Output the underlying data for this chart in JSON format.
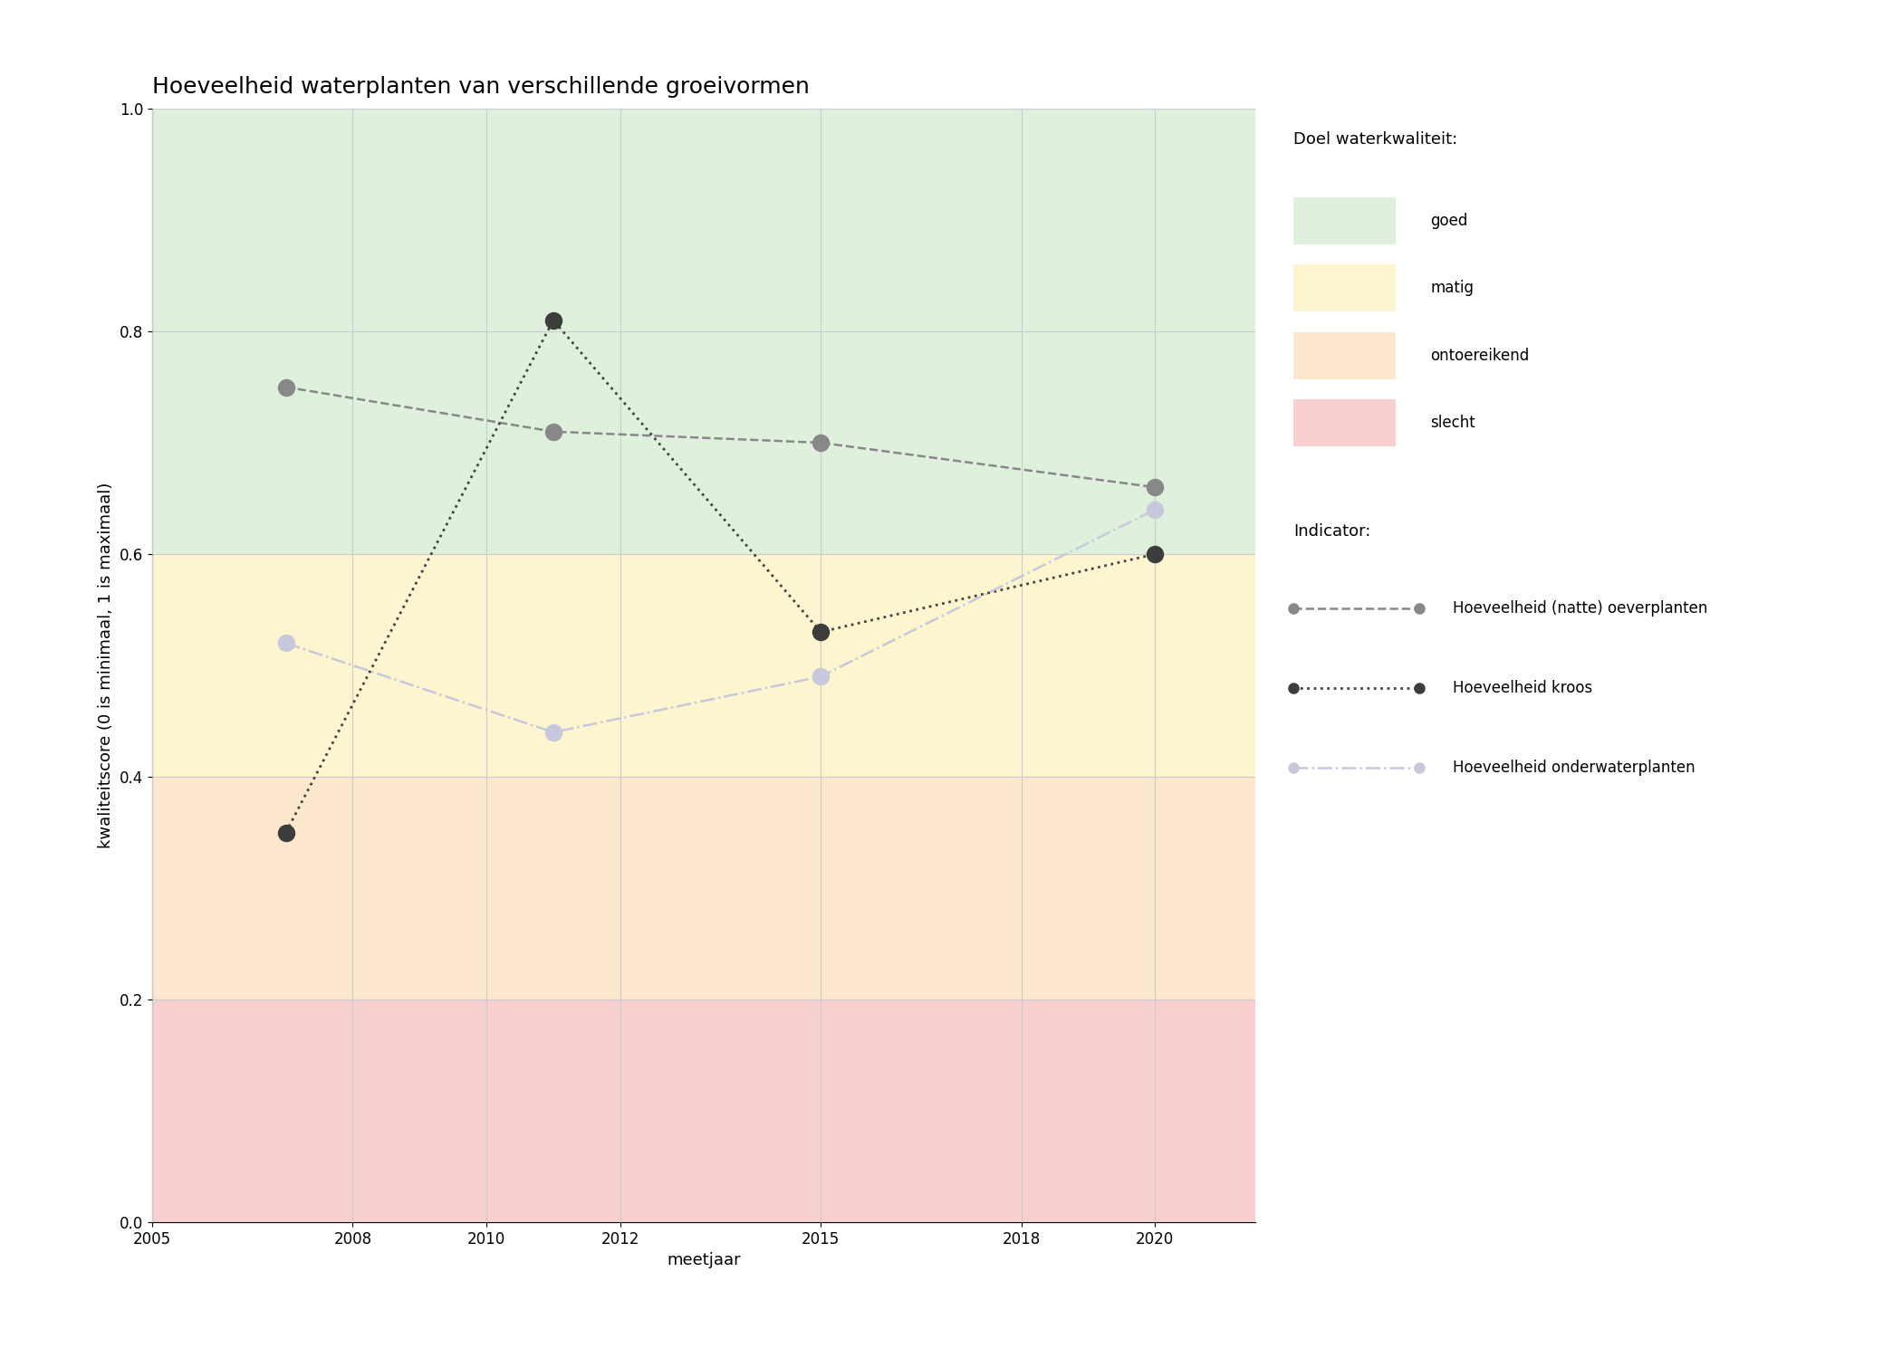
{
  "title": "Hoeveelheid waterplanten van verschillende groeivormen",
  "xlabel": "meetjaar",
  "ylabel": "kwaliteitscore (0 is minimaal, 1 is maximaal)",
  "xlim": [
    2005,
    2021.5
  ],
  "ylim": [
    0.0,
    1.0
  ],
  "xticks": [
    2005,
    2008,
    2010,
    2012,
    2015,
    2018,
    2020
  ],
  "yticks": [
    0.0,
    0.2,
    0.4,
    0.6,
    0.8,
    1.0
  ],
  "background_color": "#ffffff",
  "bg_bands": [
    {
      "ymin": 0.6,
      "ymax": 1.0,
      "color": "#dff0dd",
      "label": "goed"
    },
    {
      "ymin": 0.4,
      "ymax": 0.6,
      "color": "#fdf5d0",
      "label": "matig"
    },
    {
      "ymin": 0.2,
      "ymax": 0.4,
      "color": "#fde8cf",
      "label": "ontoereikend"
    },
    {
      "ymin": 0.0,
      "ymax": 0.2,
      "color": "#f8d0d0",
      "label": "slecht"
    }
  ],
  "series": [
    {
      "name": "Hoeveelheid (natte) oeverplanten",
      "years": [
        2007,
        2011,
        2015,
        2020
      ],
      "values": [
        0.75,
        0.71,
        0.7,
        0.66
      ],
      "color": "#888888",
      "linestyle": "dashed",
      "marker_color": "#888888",
      "linewidth": 1.8,
      "markersize": 13
    },
    {
      "name": "Hoeveelheid kroos",
      "years": [
        2007,
        2011,
        2015,
        2020
      ],
      "values": [
        0.35,
        0.81,
        0.53,
        0.6
      ],
      "color": "#444444",
      "linestyle": "dotted",
      "marker_color": "#3d3d3d",
      "linewidth": 2.0,
      "markersize": 13
    },
    {
      "name": "Hoeveelheid onderwaterplanten",
      "years": [
        2007,
        2011,
        2015,
        2020
      ],
      "values": [
        0.52,
        0.44,
        0.49,
        0.64
      ],
      "color": "#c8c8dc",
      "linestyle": "dashdot",
      "marker_color": "#c8c8dc",
      "linewidth": 1.8,
      "markersize": 13
    }
  ],
  "legend_doel_title": "Doel waterkwaliteit:",
  "legend_indicator_title": "Indicator:",
  "grid_color": "#cccccc",
  "title_fontsize": 18,
  "label_fontsize": 13,
  "tick_fontsize": 12,
  "legend_fontsize": 12,
  "legend_title_fontsize": 13
}
